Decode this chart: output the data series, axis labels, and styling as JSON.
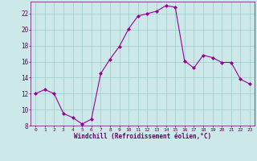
{
  "x": [
    0,
    1,
    2,
    3,
    4,
    5,
    6,
    7,
    8,
    9,
    10,
    11,
    12,
    13,
    14,
    15,
    16,
    17,
    18,
    19,
    20,
    21,
    22,
    23
  ],
  "y": [
    12.0,
    12.5,
    12.0,
    9.5,
    9.0,
    8.2,
    8.8,
    14.5,
    16.3,
    17.9,
    20.1,
    21.7,
    22.0,
    22.3,
    23.0,
    22.8,
    16.1,
    15.2,
    16.8,
    16.5,
    15.9,
    15.9,
    13.8,
    13.2
  ],
  "line_color": "#990099",
  "marker": "D",
  "marker_size": 2.0,
  "bg_color": "#cce8e8",
  "grid_color": "#99cccc",
  "xlabel": "Windchill (Refroidissement éolien,°C)",
  "xlabel_color": "#660066",
  "tick_color": "#660066",
  "ylim": [
    8,
    23.5
  ],
  "yticks": [
    8,
    10,
    12,
    14,
    16,
    18,
    20,
    22
  ],
  "xlim": [
    -0.5,
    23.5
  ],
  "xticks": [
    0,
    1,
    2,
    3,
    4,
    5,
    6,
    7,
    8,
    9,
    10,
    11,
    12,
    13,
    14,
    15,
    16,
    17,
    18,
    19,
    20,
    21,
    22,
    23
  ],
  "figsize": [
    3.2,
    2.0
  ],
  "dpi": 100,
  "spine_color": "#660066"
}
